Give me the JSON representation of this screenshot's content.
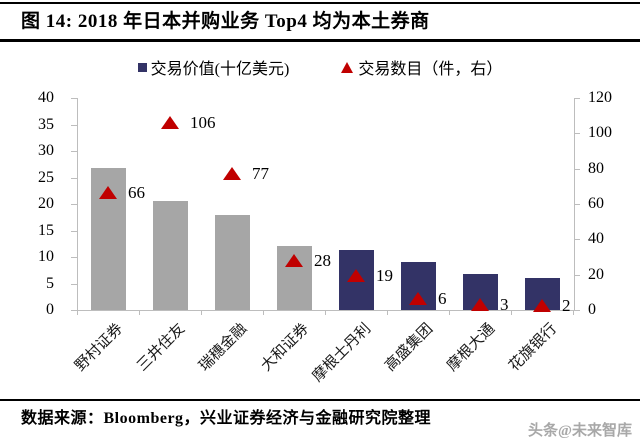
{
  "figure": {
    "title": "图 14: 2018 年日本并购业务 Top4 均为本土券商",
    "source": "数据来源：Bloomberg，兴业证券经济与金融研究院整理",
    "watermark": "头条@未来智库"
  },
  "legend": {
    "value_label": "交易价值(十亿美元)",
    "count_label": "交易数目（件，右）"
  },
  "chart_data": {
    "type": "bar",
    "title": "2018 年日本并购业务 Top4 均为本土券商",
    "categories": [
      "野村证券",
      "三井住友",
      "瑞穗金融",
      "大和证券",
      "摩根士丹利",
      "高盛集团",
      "摩根大通",
      "花旗银行"
    ],
    "series": [
      {
        "name": "交易价值(十亿美元)",
        "type": "bar",
        "axis": "left",
        "values": [
          26.8,
          20.6,
          17.9,
          12.1,
          11.4,
          9.0,
          6.8,
          6.0
        ],
        "colors": [
          "#a6a6a6",
          "#a6a6a6",
          "#a6a6a6",
          "#a6a6a6",
          "#333366",
          "#333366",
          "#333366",
          "#333366"
        ]
      },
      {
        "name": "交易数目（件，右）",
        "type": "scatter",
        "marker": "triangle",
        "axis": "right",
        "values": [
          66,
          106,
          77,
          28,
          19,
          6,
          3,
          2
        ],
        "data_labels": [
          "66",
          "106",
          "77",
          "28",
          "19",
          "6",
          "3",
          "2"
        ],
        "color": "#c00000"
      }
    ],
    "left_axis": {
      "range": [
        0,
        40
      ],
      "ticks": [
        0,
        5,
        10,
        15,
        20,
        25,
        30,
        35,
        40
      ]
    },
    "right_axis": {
      "range": [
        0,
        120
      ],
      "ticks": [
        0,
        20,
        40,
        60,
        80,
        100,
        120
      ]
    },
    "grid": false,
    "legend_position": "top"
  },
  "colors": {
    "bar_domestic": "#a6a6a6",
    "bar_foreign": "#333366",
    "marker_red": "#c00000",
    "axis_line": "#bdbdbd",
    "watermark_gray": "#a8a8a8"
  }
}
